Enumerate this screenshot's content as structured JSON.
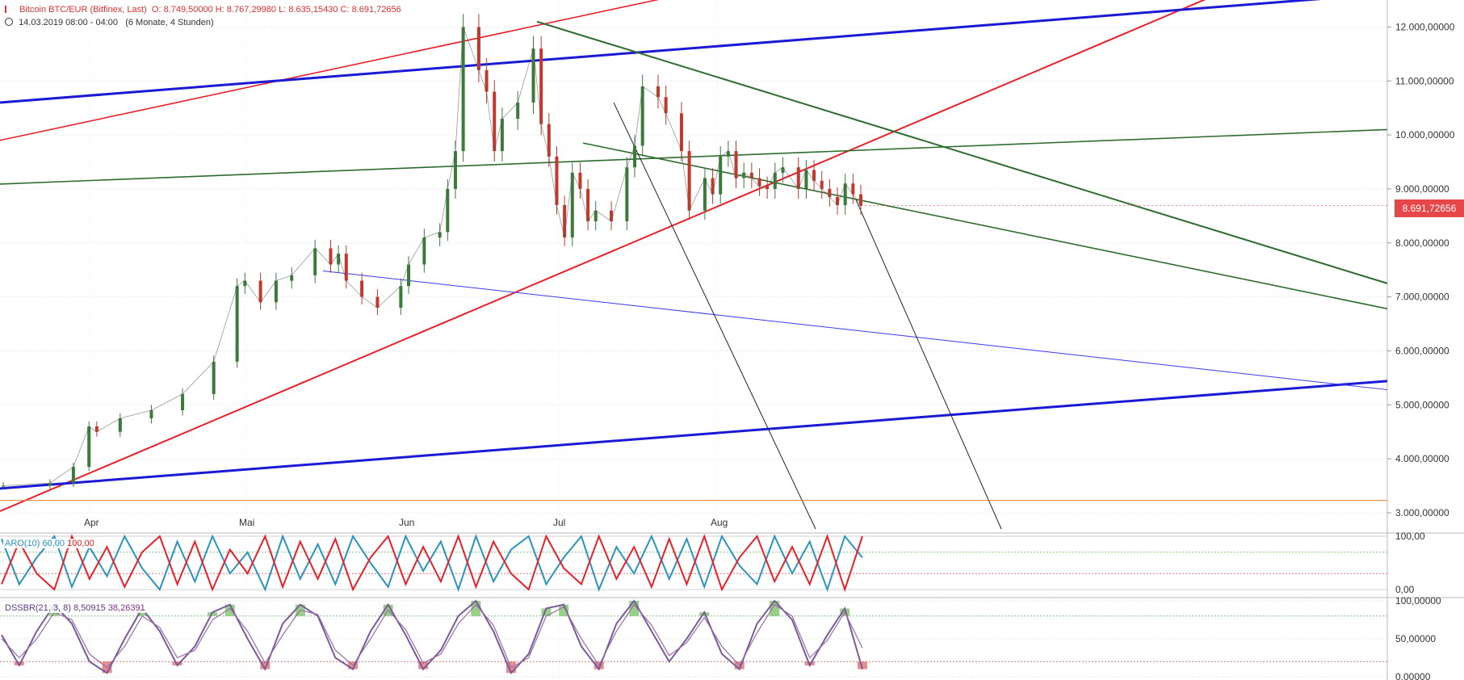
{
  "header": {
    "instrument": "Bitcoin BTC/EUR (Bitfinex, Last)",
    "ohlc": "O: 8.749,50000  H: 8.767,29980  L: 8.635,15430  C: 8.691,72656",
    "timeframe": "14.03.2019 08:00 - 04:00",
    "period": "(6 Monate, 4 Stunden)"
  },
  "last_price_label": "8.691,72656",
  "indicators": {
    "aro": {
      "name": "ARO(10)",
      "value1": "60,00",
      "value2": "100,00"
    },
    "dssbr": {
      "name": "DSSBR(21, 3, 8)",
      "value1": "8,50915",
      "value2": "38,26391"
    }
  },
  "colors": {
    "price_up": "#3b7a3b",
    "price_down": "#c0392b",
    "red_line": "#e8202a",
    "blue_line": "#1a1ad6",
    "green_line": "#2e6b2e",
    "thin_blue": "#3a3af0",
    "orange_line": "#f07a2a",
    "aro_blue": "#2a93c2",
    "aro_red": "#e8202a",
    "dss_line": "#7a5a9a",
    "dss_fill_up": "#7fc46a",
    "dss_fill_down": "#e07070"
  },
  "chart_data": [
    {
      "type": "line",
      "title": "Bitcoin BTC/EUR (Bitfinex, Last)",
      "x_ticks": [
        "Apr",
        "Mai",
        "Jun",
        "Jul",
        "Aug"
      ],
      "y_ticks": [
        "12.000,00000",
        "11.000,00000",
        "10.000,00000",
        "9.000,00000",
        "8.000,00000",
        "7.000,00000",
        "6.000,00000",
        "5.000,00000",
        "4.000,00000",
        "3.000,00000"
      ],
      "ylim": [
        2700,
        12500
      ],
      "series": [
        {
          "x": [
            0,
            12,
            18,
            22,
            24,
            30,
            38,
            46,
            54,
            60,
            62,
            66,
            70,
            74,
            80,
            84,
            86,
            88,
            92,
            96,
            102,
            104,
            108,
            112,
            114,
            116,
            118,
            122,
            124,
            126,
            128,
            132,
            136,
            138,
            140,
            142,
            144,
            146,
            148,
            150,
            152,
            156,
            160,
            162,
            164,
            168,
            170,
            174,
            176,
            180,
            182,
            184,
            186,
            188,
            190,
            192,
            194,
            196,
            198,
            200,
            204,
            206,
            208,
            210,
            212,
            214,
            216,
            218,
            220
          ],
          "values": [
            3500,
            3550,
            3850,
            4600,
            4500,
            4750,
            4900,
            5200,
            5800,
            7200,
            7300,
            6900,
            7300,
            7400,
            7900,
            7600,
            7800,
            7300,
            7000,
            6800,
            7200,
            7600,
            8100,
            8200,
            9000,
            9700,
            12000,
            11200,
            10800,
            9700,
            10300,
            10600,
            11600,
            10200,
            9600,
            8700,
            8100,
            9300,
            9000,
            8400,
            8600,
            8400,
            9400,
            9800,
            10900,
            10700,
            10400,
            9700,
            8600,
            9200,
            8900,
            9600,
            9700,
            9200,
            9300,
            9200,
            9050,
            9000,
            9300,
            9400,
            9000,
            9350,
            9150,
            9000,
            8850,
            8700,
            9100,
            8900,
            8690
          ]
        }
      ]
    },
    {
      "type": "line",
      "title": "ARO(10)",
      "y_ticks": [
        "100,00",
        "0,00"
      ],
      "ylim": [
        0,
        100
      ],
      "series": [
        {
          "name": "60,00",
          "values": [
            95,
            10,
            60,
            100,
            5,
            80,
            25,
            100,
            40,
            0,
            90,
            15,
            100,
            30,
            70,
            0,
            100,
            20,
            85,
            10,
            100,
            50,
            5,
            100,
            35,
            90,
            0,
            100,
            15,
            75,
            100,
            10,
            60,
            100,
            0,
            80,
            30,
            100,
            20,
            95,
            5,
            100,
            45,
            10,
            100,
            30,
            90,
            0,
            100,
            60
          ]
        },
        {
          "name": "100,00",
          "values": [
            10,
            90,
            30,
            0,
            100,
            20,
            80,
            5,
            70,
            100,
            10,
            90,
            0,
            75,
            30,
            100,
            5,
            90,
            20,
            95,
            0,
            60,
            100,
            10,
            80,
            15,
            100,
            5,
            90,
            30,
            0,
            100,
            40,
            10,
            100,
            20,
            80,
            5,
            95,
            10,
            100,
            0,
            60,
            100,
            15,
            80,
            10,
            100,
            0,
            100
          ]
        }
      ]
    },
    {
      "type": "line",
      "title": "DSSBR(21, 3, 8)",
      "y_ticks": [
        "100,00000",
        "50,00000",
        "0,00000"
      ],
      "ylim": [
        0,
        100
      ],
      "series": [
        {
          "name": "8,50915",
          "values": [
            55,
            15,
            60,
            95,
            70,
            20,
            5,
            50,
            90,
            60,
            15,
            40,
            85,
            95,
            50,
            10,
            70,
            95,
            80,
            25,
            10,
            60,
            95,
            55,
            10,
            35,
            80,
            100,
            60,
            5,
            30,
            90,
            95,
            40,
            10,
            70,
            100,
            60,
            20,
            50,
            85,
            30,
            10,
            70,
            100,
            75,
            15,
            55,
            90,
            10
          ]
        },
        {
          "name": "38,26391",
          "values": [
            50,
            25,
            50,
            85,
            75,
            30,
            12,
            40,
            80,
            65,
            25,
            35,
            75,
            90,
            60,
            18,
            55,
            88,
            82,
            35,
            15,
            50,
            88,
            62,
            18,
            30,
            70,
            95,
            68,
            12,
            25,
            80,
            92,
            50,
            15,
            60,
            95,
            68,
            28,
            45,
            78,
            40,
            15,
            58,
            95,
            80,
            25,
            48,
            85,
            38
          ]
        }
      ]
    }
  ]
}
